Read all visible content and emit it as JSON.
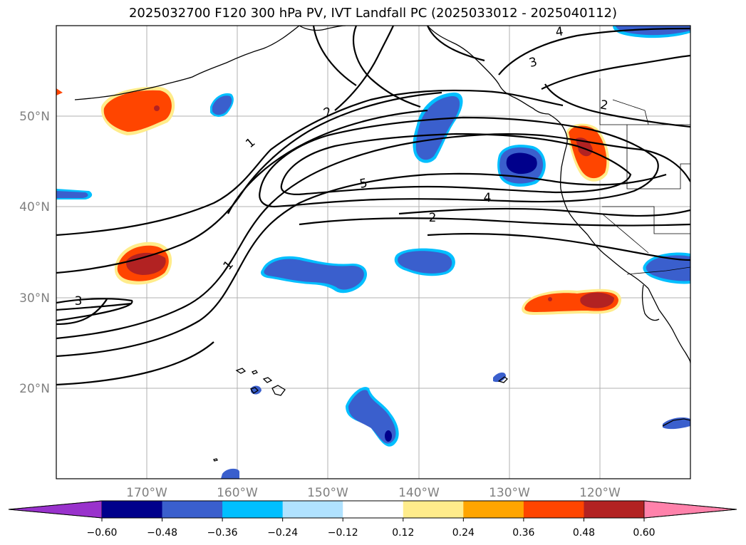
{
  "title": "2025032700 F120 300 hPa PV, IVT Landfall PC (2025033012 - 2025040112)",
  "map": {
    "projection": "PlateCarree",
    "lon_range": [
      -180,
      -110
    ],
    "lat_range": [
      10,
      60
    ],
    "grid_lats": [
      20,
      30,
      40,
      50
    ],
    "grid_lons": [
      -170,
      -160,
      -150,
      -140,
      -130,
      -120
    ],
    "lat_labels": [
      "20°N",
      "30°N",
      "40°N",
      "50°N"
    ],
    "lon_labels": [
      "170°W",
      "160°W",
      "150°W",
      "140°W",
      "130°W",
      "120°W"
    ]
  },
  "contour_labels": [
    "1",
    "1",
    "2",
    "2",
    "3",
    "3",
    "4",
    "4",
    "5",
    "2"
  ],
  "colorbar": {
    "ticks": [
      "−0.60",
      "−0.48",
      "−0.36",
      "−0.24",
      "−0.12",
      "0.12",
      "0.24",
      "0.36",
      "0.48",
      "0.60"
    ],
    "colors": [
      "#9932CC",
      "#00008B",
      "#3A5FCD",
      "#00BFFF",
      "#B0E2FF",
      "#FFFFFF",
      "#FFEC8B",
      "#FFA500",
      "#FF4500",
      "#B22222",
      "#FF82AB"
    ]
  }
}
